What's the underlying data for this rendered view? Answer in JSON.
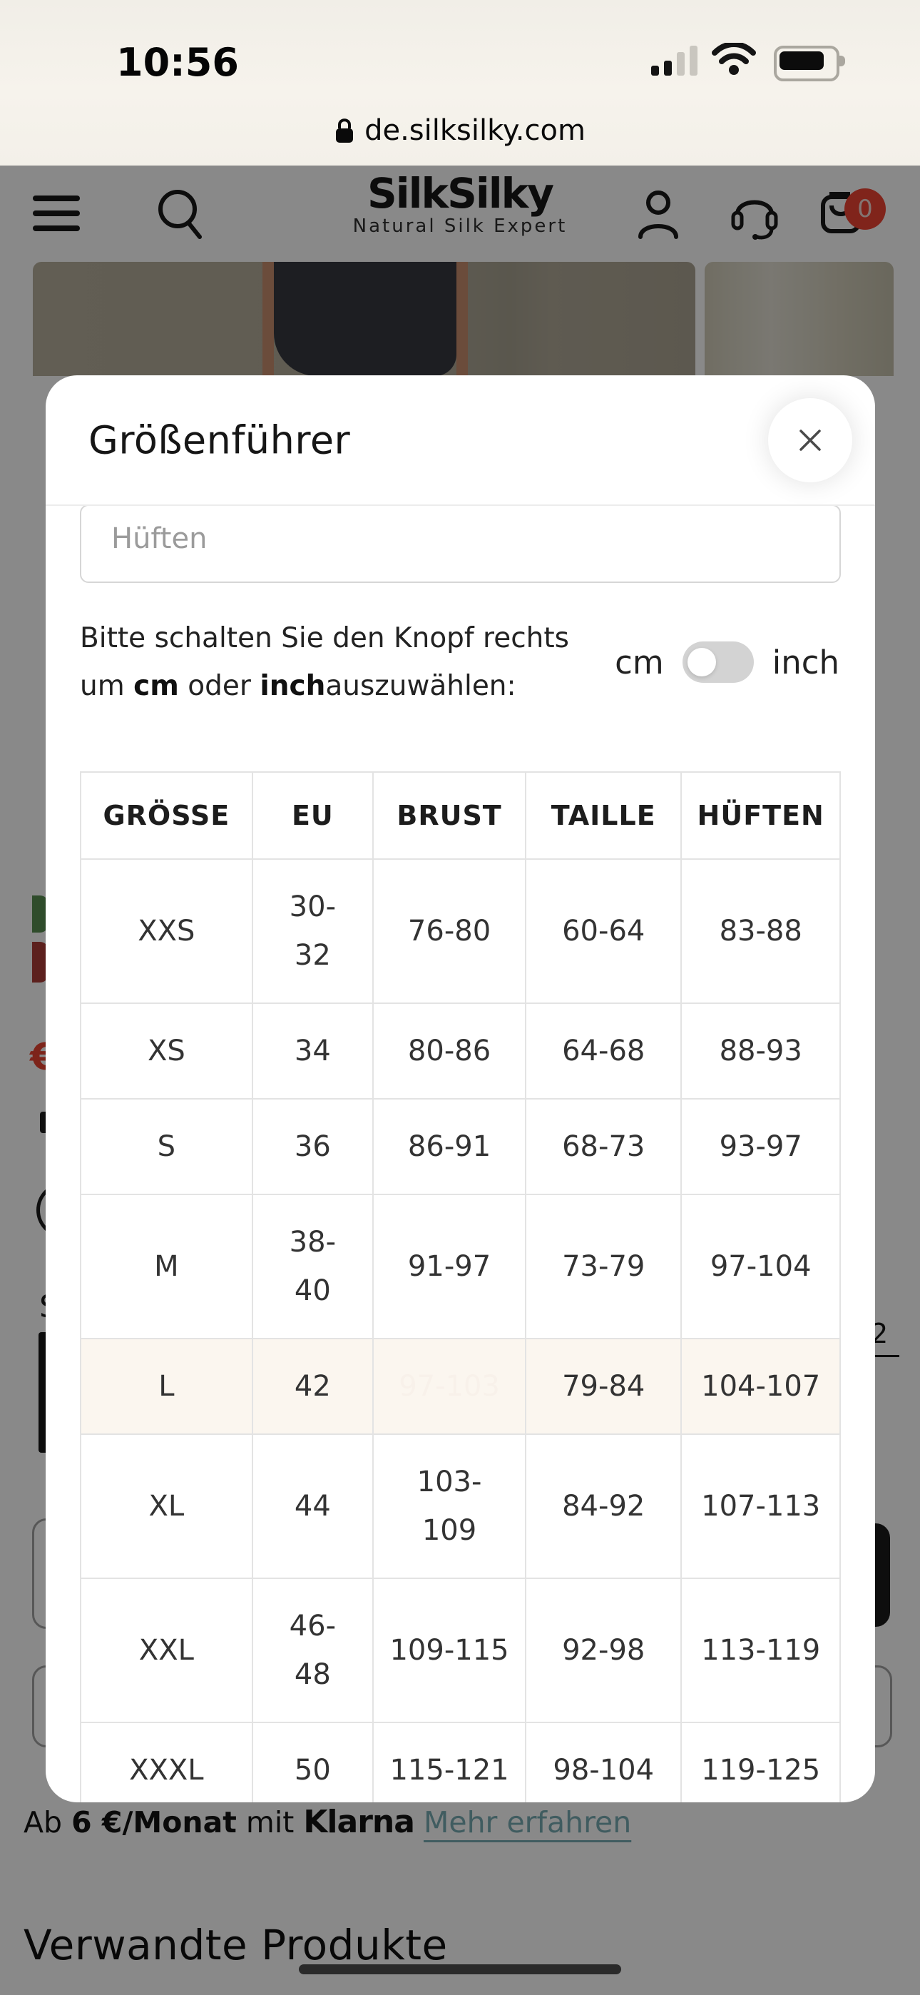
{
  "status_bar": {
    "time": "10:56",
    "url": "de.silksilky.com",
    "signal_bars_filled": 2,
    "signal_bars_total": 4,
    "battery_fill_percent": 90
  },
  "header": {
    "logo": "SilkSilky",
    "tagline": "Natural Silk Expert",
    "cart_badge": "0"
  },
  "size_modal": {
    "title": "Größenführer",
    "input": {
      "placeholder": "Hüften",
      "value": ""
    },
    "instruction": {
      "part1": "Bitte schalten Sie den Knopf rechts um ",
      "bold1": "cm",
      "part2": " oder ",
      "bold2": "inch",
      "part3": "auszuwählen:"
    },
    "toggle": {
      "left": "cm",
      "right": "inch",
      "selected": "cm"
    },
    "table": {
      "columns": [
        "GRÖSSE",
        "EU",
        "BRUST",
        "TAILLE",
        "HÜFTEN"
      ],
      "col_widths_percent": [
        22.6,
        15.9,
        20.1,
        20.5,
        20.9
      ],
      "rows": [
        {
          "size": "XXS",
          "eu": "30-\n32",
          "brust": "76-80",
          "taille": "60-64",
          "hueften": "83-88"
        },
        {
          "size": "XS",
          "eu": "34",
          "brust": "80-86",
          "taille": "64-68",
          "hueften": "88-93"
        },
        {
          "size": "S",
          "eu": "36",
          "brust": "86-91",
          "taille": "68-73",
          "hueften": "93-97"
        },
        {
          "size": "M",
          "eu": "38-\n40",
          "brust": "91-97",
          "taille": "73-79",
          "hueften": "97-104"
        },
        {
          "size": "L",
          "eu": "42",
          "brust": "97-103",
          "taille": "79-84",
          "hueften": "104-107",
          "row_highlight": true,
          "cell_highlight": "brust"
        },
        {
          "size": "XL",
          "eu": "44",
          "brust": "103-\n109",
          "taille": "84-92",
          "hueften": "107-113"
        },
        {
          "size": "XXL",
          "eu": "46-\n48",
          "brust": "109-115",
          "taille": "92-98",
          "hueften": "113-119"
        },
        {
          "size": "XXXL",
          "eu": "50",
          "brust": "115-121",
          "taille": "98-104",
          "hueften": "119-125"
        }
      ]
    }
  },
  "page_background": {
    "klarna_line": {
      "prefix": "Ab ",
      "amount": "6 €/Monat",
      "connector": " mit ",
      "brand": "Klarna",
      "link": "Mehr erfahren"
    },
    "related_products_title": "Verwandte Produkte",
    "fragment_two": "2",
    "fragment_s": "S",
    "fragment_euro": "€"
  },
  "colors": {
    "accent_red": "#c9423a",
    "highlight_row_bg": "#fbf6ef",
    "cart_badge_red": "#ef4130",
    "link_teal": "#75aab1",
    "toggle_track": "#d3d3d3",
    "swatch_green": "#558c4f",
    "swatch_red": "#aa3933"
  },
  "icons": {
    "menu": "three bars",
    "search": "magnifier",
    "user": "person outline",
    "headset": "support headset",
    "cart": "shopping bag",
    "lock": "padlock",
    "close": "✕",
    "wifi": "wifi arcs",
    "signal": "cellular bars",
    "battery": "battery body"
  }
}
